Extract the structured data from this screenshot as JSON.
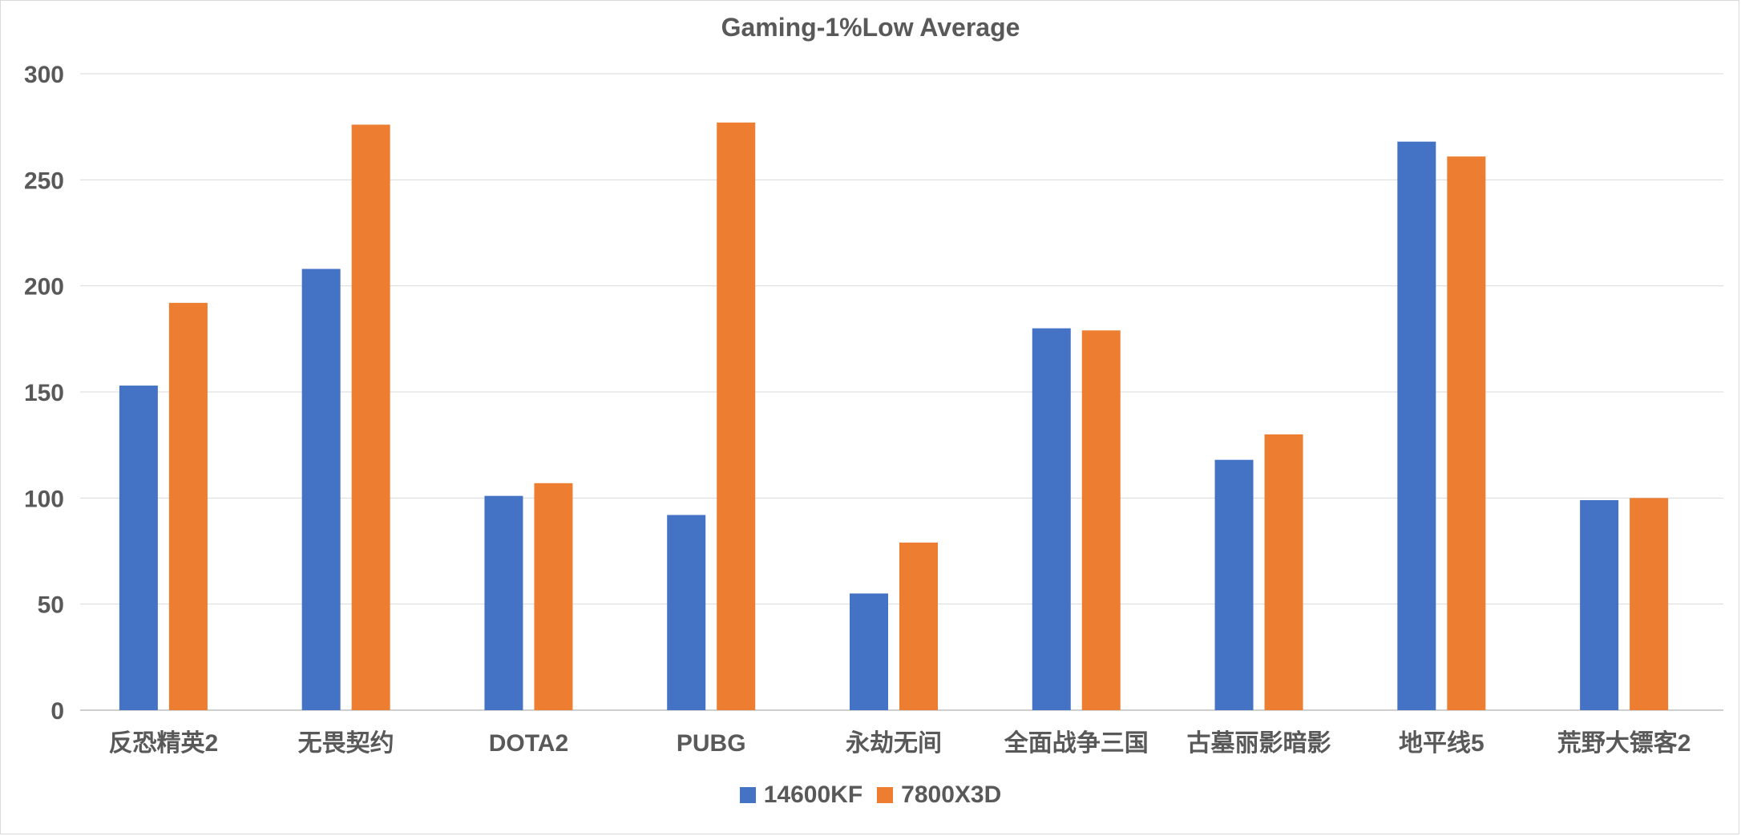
{
  "chart_data": {
    "type": "bar",
    "title": "Gaming-1%Low Average",
    "xlabel": "",
    "ylabel": "",
    "ylim": [
      0,
      300
    ],
    "yticks": [
      0,
      50,
      100,
      150,
      200,
      250,
      300
    ],
    "grid": true,
    "legend_position": "bottom",
    "categories": [
      "反恐精英2",
      "无畏契约",
      "DOTA2",
      "PUBG",
      "永劫无间",
      "全面战争三国",
      "古墓丽影暗影",
      "地平线5",
      "荒野大镖客2"
    ],
    "series": [
      {
        "name": "14600KF",
        "color": "#4472c4",
        "values": [
          153,
          208,
          101,
          92,
          55,
          180,
          118,
          268,
          99
        ]
      },
      {
        "name": "7800X3D",
        "color": "#ed7d31",
        "values": [
          192,
          276,
          107,
          277,
          79,
          179,
          130,
          261,
          100
        ]
      }
    ]
  }
}
